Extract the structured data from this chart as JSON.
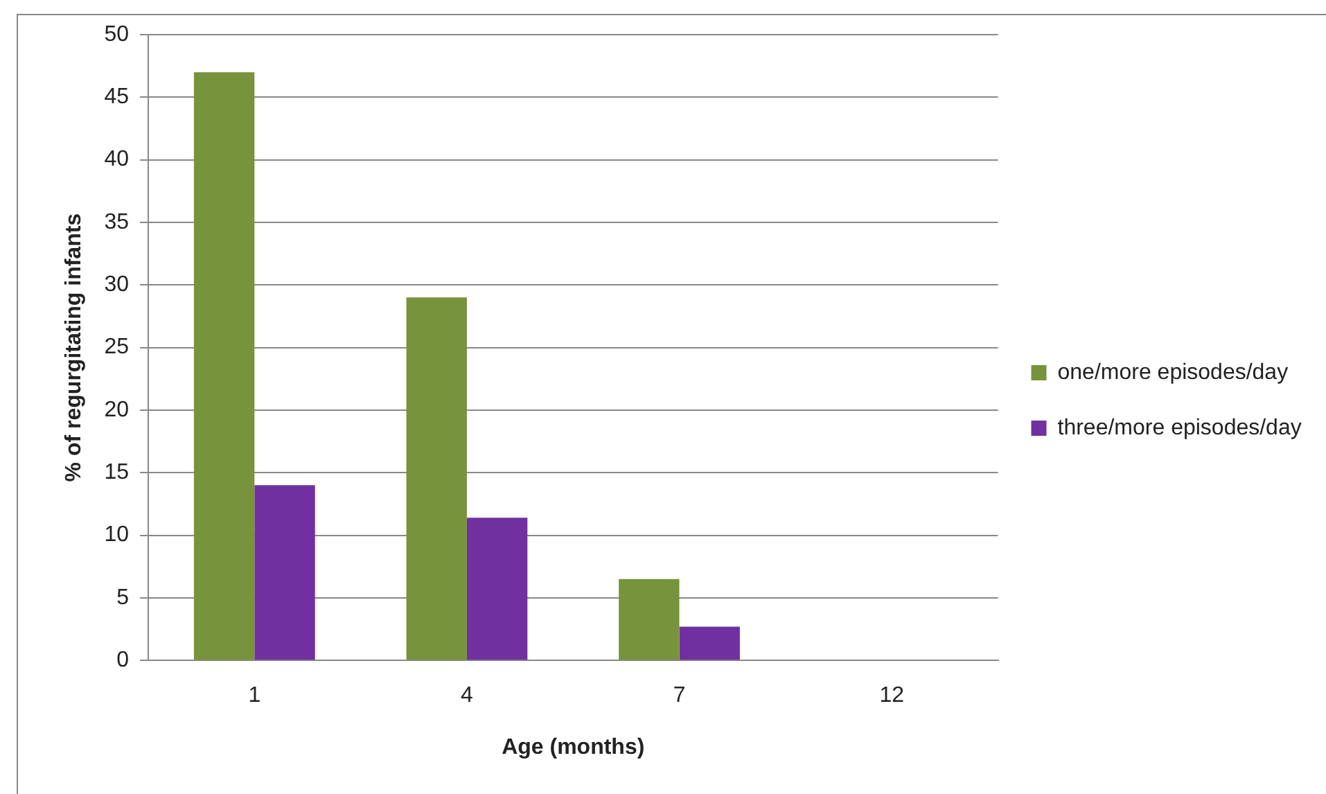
{
  "chart_data": {
    "type": "bar",
    "xlabel": "Age (months)",
    "ylabel": "% of regurgitating infants",
    "categories": [
      "1",
      "4",
      "7",
      "12"
    ],
    "series": [
      {
        "name": "one/more episodes/day",
        "color": "#77933c",
        "values": [
          47,
          29,
          6.5,
          0
        ]
      },
      {
        "name": "three/more episodes/day",
        "color": "#7030a0",
        "values": [
          14,
          11.4,
          2.7,
          0
        ]
      }
    ],
    "ylim": [
      0,
      50
    ],
    "yticks": [
      0,
      5,
      10,
      15,
      20,
      25,
      30,
      35,
      40,
      45,
      50
    ],
    "grid": "y",
    "legend": "right"
  }
}
